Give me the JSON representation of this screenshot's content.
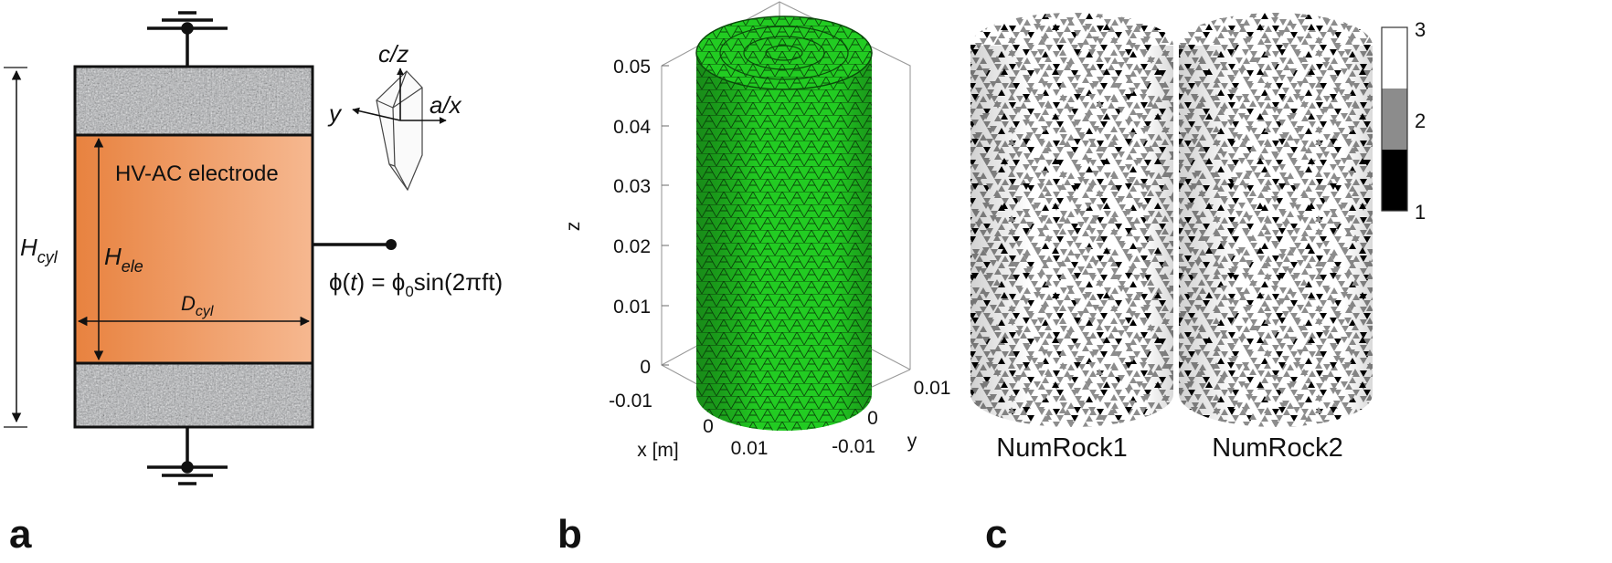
{
  "panel_a": {
    "panel_letter": "a",
    "electrode_label": "HV-AC electrode",
    "h_cyl_main": "H",
    "h_cyl_sub": "cyl",
    "h_ele_main": "H",
    "h_ele_sub": "ele",
    "d_cyl_main": "D",
    "d_cyl_sub": "cyl",
    "crystal_axis_c": "c/z",
    "crystal_axis_a": "a/x",
    "crystal_axis_y": "y",
    "potential_lhs": "ϕ(",
    "potential_t": "t",
    "potential_mid": ") = ϕ",
    "potential_sub": "0",
    "potential_rhs": "sin(2πft)",
    "colors": {
      "electrode_dark": "#e8823f",
      "electrode_light": "#f6b890",
      "rock": "#a9abae"
    }
  },
  "panel_b": {
    "panel_letter": "b",
    "z_axis_label": "z",
    "z_ticks": [
      "0.05",
      "0.04",
      "0.03",
      "0.02",
      "0.01",
      "0"
    ],
    "x_axis_label": "x [m]",
    "x_ticks": [
      "-0.01",
      "0",
      "0.01"
    ],
    "y_axis_label": "y",
    "y_ticks": [
      "-0.01",
      "0",
      "0.01"
    ],
    "mesh_color": "#22cc22"
  },
  "panel_c": {
    "panel_letter": "c",
    "sample_1_label": "NumRock1",
    "sample_2_label": "NumRock2",
    "colorbar_ticks": [
      "3",
      "2",
      "1"
    ],
    "colorbar_colors": [
      "#ffffff",
      "#8c8c8c",
      "#000000"
    ]
  }
}
